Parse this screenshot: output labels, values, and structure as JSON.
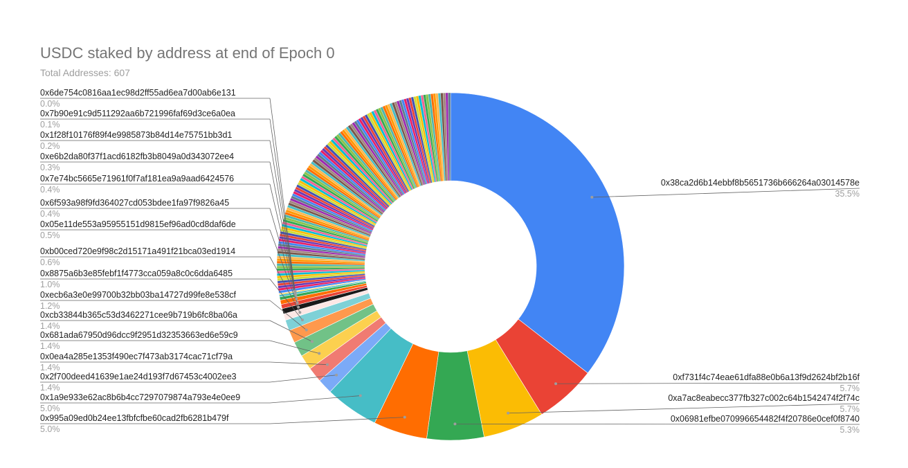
{
  "chart_data": {
    "type": "pie",
    "donut": true,
    "title": "USDC staked by address at end of Epoch 0",
    "subtitle": "Total Addresses: 607",
    "slices": [
      {
        "label": "0x38ca2d6b14ebbf8b5651736b666264a03014578e",
        "pct_text": "35.5%",
        "value": 35.5,
        "color": "#4285f4"
      },
      {
        "label": "0xf731f4c74eae61dfa88e0b6a13f9d2624bf2b16f",
        "pct_text": "5.7%",
        "value": 5.7,
        "color": "#ea4335"
      },
      {
        "label": "0xa7ac8eabecc377fb327c002c64b1542474f2f74c",
        "pct_text": "5.7%",
        "value": 5.7,
        "color": "#fbbc04"
      },
      {
        "label": "0x06981efbe070996654482f4f20786e0cef0f8740",
        "pct_text": "5.3%",
        "value": 5.3,
        "color": "#34a853"
      },
      {
        "label": "0x995a09ed0b24ee13fbfcfbe60cad2fb6281b479f",
        "pct_text": "5.0%",
        "value": 5.0,
        "color": "#ff6d01"
      },
      {
        "label": "0x1a9e933e62ac8b6b4cc7297079874a793e4e0ee9",
        "pct_text": "5.0%",
        "value": 5.0,
        "color": "#46bdc6"
      },
      {
        "label": "0x2f700deed41639e1ae24d193f7d67453c4002ee3",
        "pct_text": "1.4%",
        "value": 1.4,
        "color": "#7baaf7"
      },
      {
        "label": "0x0ea4a285e1353f490ec7f473ab3174cac71cf79a",
        "pct_text": "1.4%",
        "value": 1.4,
        "color": "#f07b72"
      },
      {
        "label": "0x681ada67950d96dcc9f2951d32353663ed6e59c9",
        "pct_text": "1.4%",
        "value": 1.4,
        "color": "#fcd04f"
      },
      {
        "label": "0xcb33844b365c53d3462271cee9b719b6fc8ba06a",
        "pct_text": "1.4%",
        "value": 1.4,
        "color": "#71c287"
      },
      {
        "label": "0xecb6a3e0e99700b32bb03ba14727d99fe8e538cf",
        "pct_text": "1.2%",
        "value": 1.2,
        "color": "#ff994d"
      },
      {
        "label": "0x8875a6b3e85febf1f4773cca059a8c0c6dda6485",
        "pct_text": "1.0%",
        "value": 1.0,
        "color": "#7ed1d7"
      },
      {
        "label": "0xb00ced720e9f98c2d15171a491f21bca03ed1914",
        "pct_text": "0.6%",
        "value": 0.6,
        "color": "#fde7e5"
      },
      {
        "label": "0x05e11de553a95955151d9815ef96ad0cd8daf6de",
        "pct_text": "0.5%",
        "value": 0.5,
        "color": "#1a1a1a"
      },
      {
        "label": "0x6f593a98f9fd364027cd053bdee1fa97f9826a45",
        "pct_text": "0.4%",
        "value": 0.4,
        "color": "#ea4335"
      },
      {
        "label": "0x7e74bc5665e71961f0f7af181ea9a9aad6424576",
        "pct_text": "0.4%",
        "value": 0.4,
        "color": "#ff6d01"
      },
      {
        "label": "0xe6b2da80f37f1acd6182fb3b8049a0d343072ee4",
        "pct_text": "0.3%",
        "value": 0.3,
        "color": "#34a853"
      },
      {
        "label": "0x1f28f10176f89f4e9985873b84d14e75751bb3d1",
        "pct_text": "0.2%",
        "value": 0.2,
        "color": "#46bdc6"
      },
      {
        "label": "0x7b90e91c9d511292aa6b721996faf69d3ce6a0ea",
        "pct_text": "0.1%",
        "value": 0.1,
        "color": "#fbbc04"
      },
      {
        "label": "0x6de754c0816aa1ec98d2ff55ad6ea7d00ab6e131",
        "pct_text": "0.0%",
        "value": 0.0,
        "color": "#bdbdbd"
      }
    ]
  }
}
